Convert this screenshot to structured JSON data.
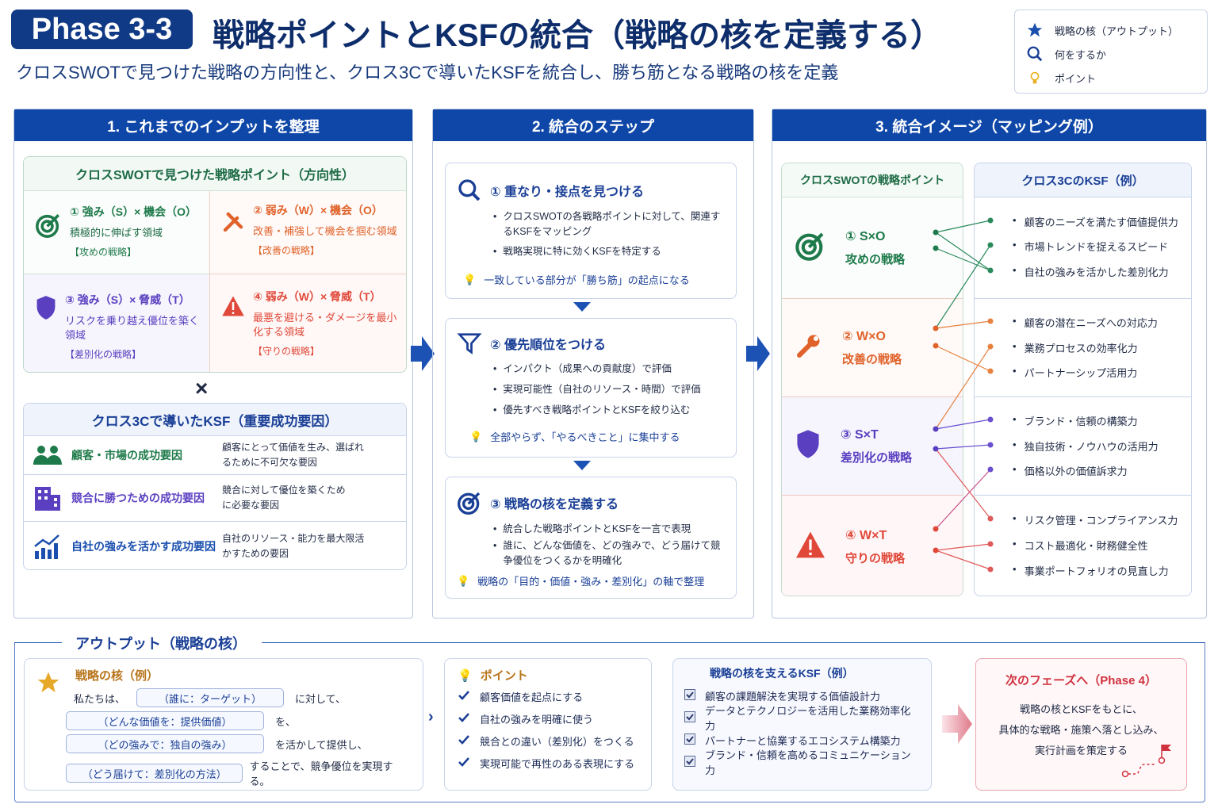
{
  "header": {
    "badge": "Phase 3-3",
    "title": "戦略ポイントとKSFの統合（戦略の核を定義する）",
    "subtitle": "クロスSWOTで見つけた戦略の方向性と、クロス3Cで導いたKSFを統合し、勝ち筋となる戦略の核を定義"
  },
  "legend": [
    {
      "icon": "star-icon",
      "label": "戦略の核（アウトプット）"
    },
    {
      "icon": "search-icon",
      "label": "何をするか"
    },
    {
      "icon": "lightbulb-icon",
      "label": "ポイント"
    }
  ],
  "panel1": {
    "title": "1. これまでのインプットを整理",
    "swot": {
      "title": "クロスSWOTで見つけた戦略ポイント（方向性）",
      "quads": [
        {
          "title": "① 強み（S）× 機会（O）",
          "desc": "積極的に伸ばす領域",
          "tag": "【攻めの戦略】",
          "color": "#1e7a4a"
        },
        {
          "title": "② 弱み（W）× 機会（O）",
          "desc": "改善・補強して機会を掴む領域",
          "tag": "【改善の戦略】",
          "color": "#e0622a"
        },
        {
          "title": "③ 強み（S）× 脅威（T）",
          "desc": "リスクを乗り越え優位を築く領域",
          "tag": "【差別化の戦略】",
          "color": "#5a3fc0"
        },
        {
          "title": "④ 弱み（W）× 脅威（T）",
          "desc": "最悪を避ける・ダメージを最小化する領域",
          "tag": "【守りの戦略】",
          "color": "#e0483a"
        }
      ]
    },
    "times": "×",
    "ksf": {
      "title": "クロス3Cで導いたKSF（重要成功要因）",
      "rows": [
        {
          "name": "顧客・市場の成功要因",
          "desc": "顧客にとって価値を生み、選ばれるために不可欠な要因",
          "color": "#1e7a4a"
        },
        {
          "name": "競合に勝つための成功要因",
          "desc": "競合に対して優位を築くために必要な要因",
          "color": "#5a3fc0"
        },
        {
          "name": "自社の強みを活かす成功要因",
          "desc": "自社のリソース・能力を最大限活かすための要因",
          "color": "#1a4fae"
        }
      ]
    }
  },
  "panel2": {
    "title": "2. 統合のステップ",
    "steps": [
      {
        "title": "① 重なり・接点を見つける",
        "bullets": [
          "クロスSWOTの各戦略ポイントに対して、関連するKSFをマッピング",
          "戦略実現に特に効くKSFを特定する"
        ],
        "tip": "一致している部分が「勝ち筋」の起点になる"
      },
      {
        "title": "② 優先順位をつける",
        "bullets": [
          "インパクト（成果への貢献度）で評価",
          "実現可能性（自社のリソース・時間）で評価",
          "優先すべき戦略ポイントとKSFを絞り込む"
        ],
        "tip": "全部やらず、「やるべきこと」に集中する"
      },
      {
        "title": "③ 戦略の核を定義する",
        "bullets": [
          "統合した戦略ポイントとKSFを一言で表現",
          "誰に、どんな価値を、どの強みで、どう届けて競争優位をつくるかを明確化"
        ],
        "tip": "戦略の「目的・価値・強み・差別化」の軸で整理"
      }
    ]
  },
  "panel3": {
    "title": "3. 統合イメージ（マッピング例）",
    "left_title": "クロスSWOTの戦略ポイント",
    "right_title": "クロス3CのKSF（例）",
    "strategies": [
      {
        "code": "① S×O",
        "name": "攻めの戦略",
        "color": "#1e7a4a"
      },
      {
        "code": "② W×O",
        "name": "改善の戦略",
        "color": "#e0622a"
      },
      {
        "code": "③ S×T",
        "name": "差別化の戦略",
        "color": "#5a3fc0"
      },
      {
        "code": "④ W×T",
        "name": "守りの戦略",
        "color": "#e0483a"
      }
    ],
    "ksf_items": [
      "顧客のニーズを満たす価値提供力",
      "市場トレンドを捉えるスピード",
      "自社の強みを活かした差別化力",
      "顧客の潜在ニーズへの対応力",
      "業務プロセスの効率化力",
      "パートナーシップ活用力",
      "ブランド・信頼の構築力",
      "独自技術・ノウハウの活用力",
      "価格以外の価値訴求力",
      "リスク管理・コンプライアンス力",
      "コスト最適化・財務健全性",
      "事業ポートフォリオの見直し力"
    ],
    "connections": [
      [
        0,
        0,
        0,
        "#2a8a5c"
      ],
      [
        0,
        0,
        2,
        "#2a8a5c"
      ],
      [
        0,
        1,
        2,
        "#2a8a5c"
      ],
      [
        1,
        0,
        1,
        "#2a8a5c"
      ],
      [
        1,
        0,
        3,
        "#e8813e"
      ],
      [
        1,
        1,
        5,
        "#e8813e"
      ],
      [
        2,
        0,
        4,
        "#e8813e"
      ],
      [
        2,
        0,
        6,
        "#6a4fd0"
      ],
      [
        2,
        1,
        7,
        "#6a4fd0"
      ],
      [
        2,
        1,
        9,
        "#e05a5a"
      ],
      [
        3,
        0,
        8,
        "#c8508a"
      ],
      [
        3,
        1,
        10,
        "#e05a5a"
      ],
      [
        3,
        1,
        11,
        "#e05a5a"
      ]
    ],
    "ksf_colors": [
      "#2a8a5c",
      "#2a8a5c",
      "#2a8a5c",
      "#e8813e",
      "#e8813e",
      "#e8813e",
      "#6a4fd0",
      "#6a4fd0",
      "#6a4fd0",
      "#e05a5a",
      "#e05a5a",
      "#e05a5a"
    ]
  },
  "output": {
    "title": "アウトプット（戦略の核）",
    "core": {
      "title": "戦略の核（例）",
      "l1a": "私たちは、",
      "f1": "（誰に：ターゲット）",
      "l1b": "に対して、",
      "f2": "（どんな価値を：提供価値）",
      "l2": "を、",
      "f3": "（どの強みで：独自の強み）",
      "l3": "を活かして提供し、",
      "f4": "（どう届けて：差別化の方法）",
      "l4": "することで、競争優位を実現する。"
    },
    "points": {
      "title": "ポイント",
      "items": [
        "顧客価値を起点にする",
        "自社の強みを明確に使う",
        "競合との違い（差別化）をつくる",
        "実現可能で再性のある表現にする"
      ]
    },
    "ksf": {
      "title": "戦略の核を支えるKSF（例）",
      "items": [
        "顧客の課題解決を実現する価値設計力",
        "データとテクノロジーを活用した業務効率化力",
        "パートナーと協業するエコシステム構築力",
        "ブランド・信頼を高めるコミュニケーション力"
      ]
    },
    "next": {
      "title": "次のフェーズへ（Phase 4）",
      "lines": [
        "戦略の核とKSFをもとに、",
        "具体的な戦略・施策へ落とし込み、",
        "実行計画を策定する"
      ]
    }
  }
}
